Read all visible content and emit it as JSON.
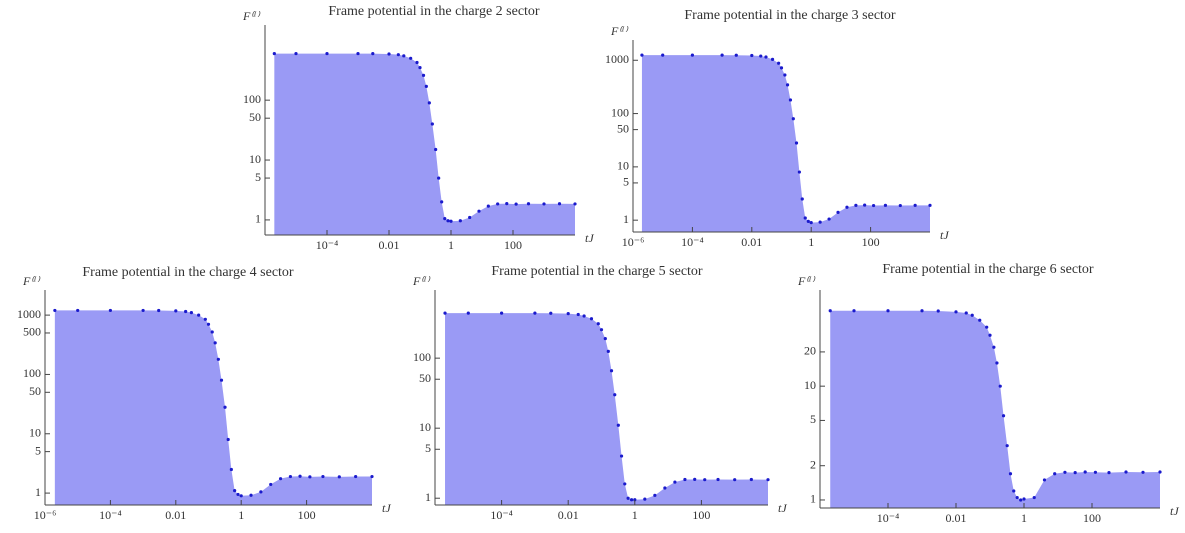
{
  "chart_data": [
    {
      "type": "area",
      "title": "Frame potential in the charge 2 sector",
      "xlabel": "tJ",
      "ylabel": "F⁽ᴵ⁾",
      "x": [
        2e-06,
        1e-05,
        0.0001,
        0.001,
        0.003,
        0.01,
        0.02,
        0.03,
        0.05,
        0.08,
        0.1,
        0.13,
        0.16,
        0.2,
        0.25,
        0.32,
        0.4,
        0.5,
        0.63,
        0.8,
        1,
        2,
        4,
        8,
        16,
        32,
        63,
        126,
        316,
        1000,
        3162,
        10000
      ],
      "series": [
        {
          "name": "F⁽ᴵ⁾",
          "color": "#1a1acc",
          "fill": "#9a9af5",
          "values": [
            600,
            600,
            600,
            600,
            598,
            590,
            575,
            550,
            500,
            425,
            350,
            260,
            170,
            90,
            40,
            15,
            5,
            2,
            1.05,
            0.97,
            0.95,
            0.97,
            1.1,
            1.4,
            1.7,
            1.85,
            1.87,
            1.84,
            1.86,
            1.85,
            1.86,
            1.85
          ]
        }
      ],
      "xlim": [
        1e-06,
        10000
      ],
      "xticks": [
        {
          "value": 0.0001,
          "label": "10⁻⁴"
        },
        0.01,
        1,
        100
      ],
      "ylim": [
        0.56,
        1800
      ],
      "yticks": [
        1,
        5,
        10,
        50,
        100
      ],
      "xlog": true,
      "ylog": true
    },
    {
      "type": "area",
      "title": "Frame potential in the charge 3 sector",
      "xlabel": "tJ",
      "ylabel": "F⁽ᴵ⁾",
      "x": [
        2e-06,
        1e-05,
        0.0001,
        0.001,
        0.003,
        0.01,
        0.02,
        0.03,
        0.05,
        0.08,
        0.1,
        0.13,
        0.16,
        0.2,
        0.25,
        0.32,
        0.4,
        0.5,
        0.63,
        0.8,
        1,
        2,
        4,
        8,
        16,
        32,
        63,
        126,
        316,
        1000,
        3162,
        10000
      ],
      "series": [
        {
          "name": "F⁽ᴵ⁾",
          "color": "#1a1acc",
          "fill": "#9a9af5",
          "values": [
            1250,
            1250,
            1250,
            1250,
            1245,
            1230,
            1200,
            1150,
            1040,
            880,
            720,
            530,
            345,
            180,
            80,
            28,
            8,
            2.5,
            1.1,
            0.95,
            0.9,
            0.92,
            1.05,
            1.4,
            1.75,
            1.9,
            1.92,
            1.88,
            1.9,
            1.88,
            1.9,
            1.9
          ]
        }
      ],
      "xlim": [
        1e-06,
        10000
      ],
      "xticks": [
        {
          "value": 1e-06,
          "label": "10⁻⁶"
        },
        {
          "value": 0.0001,
          "label": "10⁻⁴"
        },
        0.01,
        1,
        100
      ],
      "ylim": [
        0.6,
        2400
      ],
      "yticks": [
        1,
        5,
        10,
        50,
        100,
        1000
      ],
      "xlog": true,
      "ylog": true
    },
    {
      "type": "area",
      "title": "Frame potential in the charge 4 sector",
      "xlabel": "tJ",
      "ylabel": "F⁽ᴵ⁾",
      "x": [
        2e-06,
        1e-05,
        0.0001,
        0.001,
        0.003,
        0.01,
        0.02,
        0.03,
        0.05,
        0.08,
        0.1,
        0.13,
        0.16,
        0.2,
        0.25,
        0.32,
        0.4,
        0.5,
        0.63,
        0.8,
        1,
        2,
        4,
        8,
        16,
        32,
        63,
        126,
        316,
        1000,
        3162,
        10000
      ],
      "series": [
        {
          "name": "F⁽ᴵ⁾",
          "color": "#1a1acc",
          "fill": "#9a9af5",
          "values": [
            1200,
            1200,
            1200,
            1200,
            1195,
            1180,
            1150,
            1100,
            1000,
            850,
            700,
            520,
            340,
            180,
            80,
            28,
            8,
            2.5,
            1.1,
            0.95,
            0.9,
            0.92,
            1.05,
            1.4,
            1.75,
            1.9,
            1.92,
            1.88,
            1.9,
            1.88,
            1.9,
            1.9
          ]
        }
      ],
      "xlim": [
        1e-06,
        10000
      ],
      "xticks": [
        {
          "value": 1e-06,
          "label": "10⁻⁶"
        },
        {
          "value": 0.0001,
          "label": "10⁻⁴"
        },
        0.01,
        1,
        100
      ],
      "ylim": [
        0.63,
        2650
      ],
      "yticks": [
        1,
        5,
        10,
        50,
        100,
        500,
        1000
      ],
      "xlog": true,
      "ylog": true
    },
    {
      "type": "area",
      "title": "Frame potential in the charge 5 sector",
      "xlabel": "tJ",
      "ylabel": "F⁽ᴵ⁾",
      "x": [
        2e-06,
        1e-05,
        0.0001,
        0.001,
        0.003,
        0.01,
        0.02,
        0.03,
        0.05,
        0.08,
        0.1,
        0.13,
        0.16,
        0.2,
        0.25,
        0.32,
        0.4,
        0.5,
        0.63,
        0.8,
        1,
        2,
        4,
        8,
        16,
        32,
        63,
        126,
        316,
        1000,
        3162,
        10000
      ],
      "series": [
        {
          "name": "F⁽ᴵ⁾",
          "color": "#1a1acc",
          "fill": "#9a9af5",
          "values": [
            440,
            440,
            440,
            440,
            438,
            432,
            420,
            400,
            365,
            310,
            255,
            190,
            125,
            66,
            30,
            11,
            4,
            1.6,
            1.0,
            0.95,
            0.95,
            0.97,
            1.1,
            1.4,
            1.7,
            1.85,
            1.86,
            1.84,
            1.85,
            1.84,
            1.85,
            1.84
          ]
        }
      ],
      "xlim": [
        1e-06,
        10000
      ],
      "xticks": [
        {
          "value": 0.0001,
          "label": "10⁻⁴"
        },
        0.01,
        1,
        100
      ],
      "ylim": [
        0.8,
        940
      ],
      "yticks": [
        1,
        5,
        10,
        50,
        100
      ],
      "xlog": true,
      "ylog": true
    },
    {
      "type": "area",
      "title": "Frame potential in the charge 6 sector",
      "xlabel": "tJ",
      "ylabel": "F⁽ᴵ⁾",
      "x": [
        2e-06,
        1e-05,
        0.0001,
        0.001,
        0.003,
        0.01,
        0.02,
        0.03,
        0.05,
        0.08,
        0.1,
        0.13,
        0.16,
        0.2,
        0.25,
        0.32,
        0.4,
        0.5,
        0.63,
        0.8,
        1,
        2,
        4,
        8,
        16,
        32,
        63,
        126,
        316,
        1000,
        3162,
        10000
      ],
      "series": [
        {
          "name": "F⁽ᴵ⁾",
          "color": "#1a1acc",
          "fill": "#9a9af5",
          "values": [
            46,
            46,
            46,
            46,
            45.8,
            45,
            44,
            42,
            38,
            33,
            28,
            22,
            16,
            10,
            5.5,
            3,
            1.7,
            1.2,
            1.05,
            1.0,
            1.02,
            1.05,
            1.5,
            1.7,
            1.75,
            1.74,
            1.76,
            1.75,
            1.74,
            1.76,
            1.75,
            1.76
          ]
        }
      ],
      "xlim": [
        1e-06,
        10000
      ],
      "xticks": [
        {
          "value": 0.0001,
          "label": "10⁻⁴"
        },
        0.01,
        1,
        100
      ],
      "ylim": [
        0.85,
        70
      ],
      "yticks": [
        1,
        2,
        5,
        10,
        20
      ],
      "xlog": true,
      "ylog": true
    }
  ]
}
